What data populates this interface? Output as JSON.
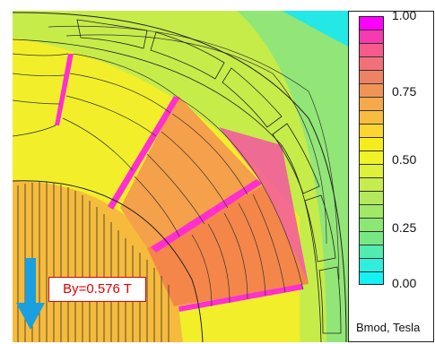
{
  "field_plot": {
    "annotation": "By=0.576 T",
    "arrow_icon": "down-arrow-icon"
  },
  "legend": {
    "title": "Bmod, Tesla",
    "tick_labels": [
      "1.00",
      "0.75",
      "0.50",
      "0.25",
      "0.00"
    ],
    "colors": [
      "#ff00ff",
      "#f73ab0",
      "#f55c8c",
      "#f2707a",
      "#ee8264",
      "#f09555",
      "#f4a94a",
      "#f8bd3e",
      "#fcd531",
      "#f5ec1e",
      "#f0f326",
      "#ddf03a",
      "#c7ec4e",
      "#b2ea5c",
      "#a0e868",
      "#8ce874",
      "#77e884",
      "#52ecb0",
      "#30eedc",
      "#15f1f5"
    ]
  }
}
